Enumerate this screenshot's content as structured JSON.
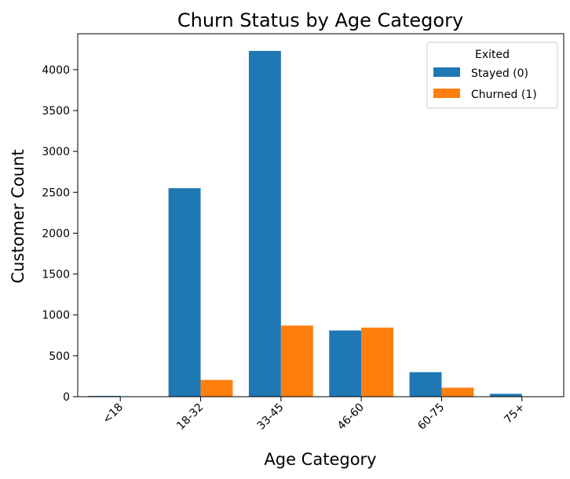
{
  "chart_data": {
    "type": "bar",
    "title": "Churn Status by Age Category",
    "xlabel": "Age Category",
    "ylabel": "Customer Count",
    "categories": [
      "<18",
      "18-32",
      "33-45",
      "46-60",
      "60-75",
      "75+"
    ],
    "series": [
      {
        "name": "Stayed (0)",
        "values": [
          10,
          2550,
          4230,
          810,
          300,
          35
        ],
        "color": "#1f77b4"
      },
      {
        "name": "Churned (1)",
        "values": [
          0,
          205,
          870,
          845,
          110,
          0
        ],
        "color": "#ff7f0e"
      }
    ],
    "ylim": [
      0,
      4440
    ],
    "yticks": [
      0,
      500,
      1000,
      1500,
      2000,
      2500,
      3000,
      3500,
      4000
    ],
    "legend": {
      "title": "Exited",
      "placement": "top-right"
    },
    "grid": false
  }
}
